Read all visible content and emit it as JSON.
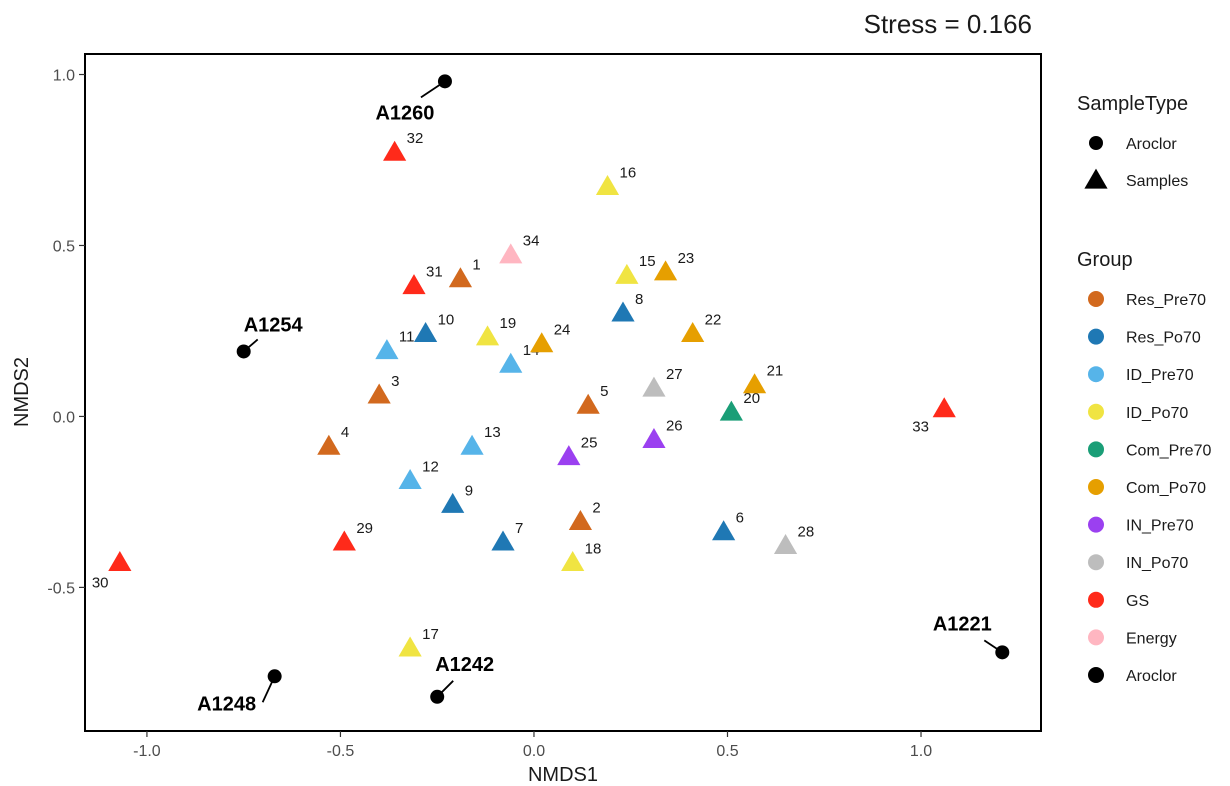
{
  "chart_data": {
    "type": "scatter",
    "stress_label": "Stress = 0.166",
    "xlabel": "NMDS1",
    "ylabel": "NMDS2",
    "xlim": [
      -1.16,
      1.31
    ],
    "ylim": [
      -0.92,
      1.06
    ],
    "x_ticks": [
      -1.0,
      -0.5,
      0.0,
      0.5,
      1.0
    ],
    "x_tick_labels": [
      "-1.0",
      "-0.5",
      "0.0",
      "0.5",
      "1.0"
    ],
    "y_ticks": [
      -0.5,
      0.0,
      0.5,
      1.0
    ],
    "y_tick_labels": [
      "-0.5",
      "0.0",
      "0.5",
      "1.0"
    ],
    "grid": false,
    "legend_position": "right",
    "legend": {
      "sample_type_title": "SampleType",
      "sample_types": [
        {
          "name": "Aroclor",
          "shape": "circle"
        },
        {
          "name": "Samples",
          "shape": "triangle"
        }
      ],
      "group_title": "Group",
      "groups": [
        {
          "name": "Res_Pre70",
          "color": "#d2691e"
        },
        {
          "name": "Res_Po70",
          "color": "#1f78b4"
        },
        {
          "name": "ID_Pre70",
          "color": "#56b4e9"
        },
        {
          "name": "ID_Po70",
          "color": "#f0e442"
        },
        {
          "name": "Com_Pre70",
          "color": "#1a9e77"
        },
        {
          "name": "Com_Po70",
          "color": "#e69f00"
        },
        {
          "name": "IN_Pre70",
          "color": "#9b40f0"
        },
        {
          "name": "IN_Po70",
          "color": "#bdbdbd"
        },
        {
          "name": "GS",
          "color": "#ff2a1a"
        },
        {
          "name": "Energy",
          "color": "#ffb6c1"
        },
        {
          "name": "Aroclor",
          "color": "#000000"
        }
      ]
    },
    "aroclor_points": [
      {
        "label": "A1260",
        "x": -0.23,
        "y": 0.98
      },
      {
        "label": "A1254",
        "x": -0.75,
        "y": 0.19
      },
      {
        "label": "A1248",
        "x": -0.67,
        "y": -0.76
      },
      {
        "label": "A1242",
        "x": -0.25,
        "y": -0.82
      },
      {
        "label": "A1221",
        "x": 1.21,
        "y": -0.69
      }
    ],
    "sample_points": [
      {
        "label": "1",
        "group": "Res_Pre70",
        "x": -0.19,
        "y": 0.4
      },
      {
        "label": "2",
        "group": "Res_Pre70",
        "x": 0.12,
        "y": -0.31
      },
      {
        "label": "3",
        "group": "Res_Pre70",
        "x": -0.4,
        "y": 0.06
      },
      {
        "label": "4",
        "group": "Res_Pre70",
        "x": -0.53,
        "y": -0.09
      },
      {
        "label": "5",
        "group": "Res_Pre70",
        "x": 0.14,
        "y": 0.03
      },
      {
        "label": "6",
        "group": "Res_Po70",
        "x": 0.49,
        "y": -0.34
      },
      {
        "label": "7",
        "group": "Res_Po70",
        "x": -0.08,
        "y": -0.37
      },
      {
        "label": "8",
        "group": "Res_Po70",
        "x": 0.23,
        "y": 0.3
      },
      {
        "label": "9",
        "group": "Res_Po70",
        "x": -0.21,
        "y": -0.26
      },
      {
        "label": "10",
        "group": "Res_Po70",
        "x": -0.28,
        "y": 0.24
      },
      {
        "label": "11",
        "group": "ID_Pre70",
        "x": -0.38,
        "y": 0.19
      },
      {
        "label": "12",
        "group": "ID_Pre70",
        "x": -0.32,
        "y": -0.19
      },
      {
        "label": "13",
        "group": "ID_Pre70",
        "x": -0.16,
        "y": -0.09
      },
      {
        "label": "14",
        "group": "ID_Pre70",
        "x": -0.06,
        "y": 0.15
      },
      {
        "label": "15",
        "group": "ID_Po70",
        "x": 0.24,
        "y": 0.41
      },
      {
        "label": "16",
        "group": "ID_Po70",
        "x": 0.19,
        "y": 0.67
      },
      {
        "label": "17",
        "group": "ID_Po70",
        "x": -0.32,
        "y": -0.68
      },
      {
        "label": "18",
        "group": "ID_Po70",
        "x": 0.1,
        "y": -0.43
      },
      {
        "label": "19",
        "group": "ID_Po70",
        "x": -0.12,
        "y": 0.23
      },
      {
        "label": "20",
        "group": "Com_Pre70",
        "x": 0.51,
        "y": 0.01
      },
      {
        "label": "21",
        "group": "Com_Po70",
        "x": 0.57,
        "y": 0.09
      },
      {
        "label": "22",
        "group": "Com_Po70",
        "x": 0.41,
        "y": 0.24
      },
      {
        "label": "23",
        "group": "Com_Po70",
        "x": 0.34,
        "y": 0.42
      },
      {
        "label": "24",
        "group": "Com_Po70",
        "x": 0.02,
        "y": 0.21
      },
      {
        "label": "25",
        "group": "IN_Pre70",
        "x": 0.09,
        "y": -0.12
      },
      {
        "label": "26",
        "group": "IN_Pre70",
        "x": 0.31,
        "y": -0.07
      },
      {
        "label": "27",
        "group": "IN_Po70",
        "x": 0.31,
        "y": 0.08
      },
      {
        "label": "28",
        "group": "IN_Po70",
        "x": 0.65,
        "y": -0.38
      },
      {
        "label": "29",
        "group": "GS",
        "x": -0.49,
        "y": -0.37
      },
      {
        "label": "30",
        "group": "GS",
        "x": -1.07,
        "y": -0.43
      },
      {
        "label": "31",
        "group": "GS",
        "x": -0.31,
        "y": 0.38
      },
      {
        "label": "32",
        "group": "GS",
        "x": -0.36,
        "y": 0.77
      },
      {
        "label": "33",
        "group": "GS",
        "x": 1.06,
        "y": 0.02
      },
      {
        "label": "34",
        "group": "Energy",
        "x": -0.06,
        "y": 0.47
      }
    ]
  }
}
